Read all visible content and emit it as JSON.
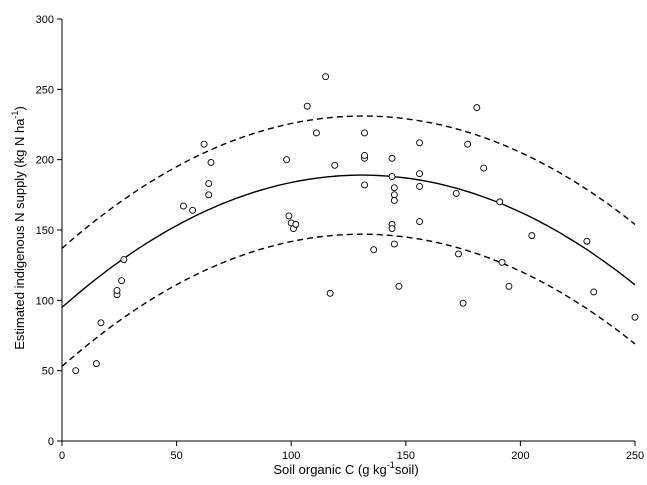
{
  "chart_data": {
    "type": "scatter",
    "xlabel": {
      "main": "Soil organic C (g kg",
      "sup": "-1",
      "tail": "soil)"
    },
    "ylabel": {
      "main": "Estimated indigenous N supply (kg N ha",
      "sup": "-1",
      "tail": ")"
    },
    "xlim": [
      0,
      250
    ],
    "ylim": [
      0,
      300
    ],
    "xticks": [
      0,
      50,
      100,
      150,
      200,
      250
    ],
    "yticks": [
      0,
      50,
      100,
      150,
      200,
      250,
      300
    ],
    "grid": false,
    "legend": "none",
    "points": [
      [
        6,
        50
      ],
      [
        15,
        55
      ],
      [
        17,
        84
      ],
      [
        24,
        104
      ],
      [
        24,
        107
      ],
      [
        26,
        114
      ],
      [
        27,
        129
      ],
      [
        53,
        167
      ],
      [
        57,
        164
      ],
      [
        62,
        211
      ],
      [
        64,
        175
      ],
      [
        64,
        183
      ],
      [
        65,
        198
      ],
      [
        98,
        200
      ],
      [
        99,
        160
      ],
      [
        100,
        155
      ],
      [
        101,
        151
      ],
      [
        102,
        154
      ],
      [
        107,
        238
      ],
      [
        111,
        219
      ],
      [
        115,
        259
      ],
      [
        117,
        105
      ],
      [
        119,
        196
      ],
      [
        132,
        219
      ],
      [
        132,
        201
      ],
      [
        132,
        203
      ],
      [
        132,
        182
      ],
      [
        136,
        136
      ],
      [
        144,
        201
      ],
      [
        144,
        188
      ],
      [
        144,
        154
      ],
      [
        144,
        151
      ],
      [
        145,
        180
      ],
      [
        145,
        175
      ],
      [
        145,
        171
      ],
      [
        145,
        140
      ],
      [
        147,
        110
      ],
      [
        156,
        212
      ],
      [
        156,
        190
      ],
      [
        156,
        181
      ],
      [
        156,
        156
      ],
      [
        172,
        176
      ],
      [
        173,
        133
      ],
      [
        175,
        98
      ],
      [
        177,
        211
      ],
      [
        181,
        237
      ],
      [
        184,
        194
      ],
      [
        191,
        170
      ],
      [
        192,
        127
      ],
      [
        195,
        110
      ],
      [
        205,
        146
      ],
      [
        229,
        142
      ],
      [
        232,
        106
      ],
      [
        250,
        88
      ]
    ],
    "series": [
      {
        "style": "solid",
        "values": [
          [
            0,
            95
          ],
          [
            130,
            189
          ],
          [
            250,
            111
          ]
        ]
      },
      {
        "style": "dashed",
        "values": [
          [
            0,
            137
          ],
          [
            130,
            231
          ],
          [
            250,
            154
          ]
        ]
      },
      {
        "style": "dashed",
        "values": [
          [
            0,
            53
          ],
          [
            130,
            147
          ],
          [
            250,
            69
          ]
        ]
      }
    ]
  }
}
